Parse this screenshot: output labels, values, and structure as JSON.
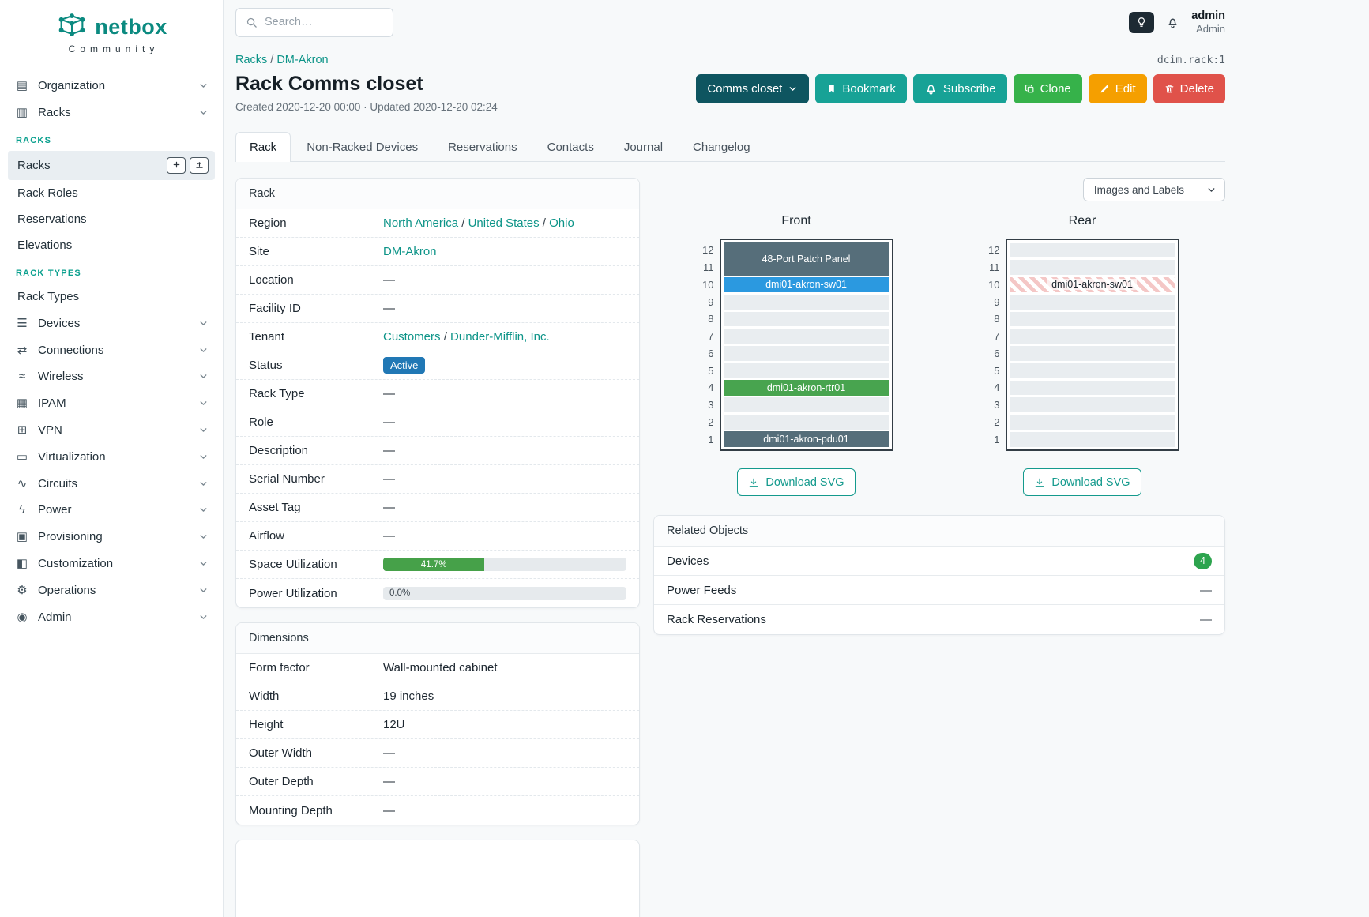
{
  "brand": {
    "name": "netbox",
    "community": "Community"
  },
  "topbar": {
    "search_placeholder": "Search…",
    "user_name": "admin",
    "user_role": "Admin"
  },
  "sidebar": {
    "items": [
      {
        "type": "top",
        "label": "Organization",
        "icon": "building-icon"
      },
      {
        "type": "top",
        "label": "Racks",
        "icon": "rack-icon",
        "expanded": true
      },
      {
        "type": "section",
        "label": "RACKS"
      },
      {
        "type": "sub",
        "label": "Racks",
        "active": true,
        "actions": [
          "add",
          "import"
        ]
      },
      {
        "type": "sub",
        "label": "Rack Roles"
      },
      {
        "type": "sub",
        "label": "Reservations"
      },
      {
        "type": "sub",
        "label": "Elevations"
      },
      {
        "type": "section",
        "label": "RACK TYPES"
      },
      {
        "type": "sub",
        "label": "Rack Types"
      },
      {
        "type": "top",
        "label": "Devices",
        "icon": "devices-icon"
      },
      {
        "type": "top",
        "label": "Connections",
        "icon": "connections-icon"
      },
      {
        "type": "top",
        "label": "Wireless",
        "icon": "wifi-icon"
      },
      {
        "type": "top",
        "label": "IPAM",
        "icon": "ipam-icon"
      },
      {
        "type": "top",
        "label": "VPN",
        "icon": "vpn-icon"
      },
      {
        "type": "top",
        "label": "Virtualization",
        "icon": "monitor-icon"
      },
      {
        "type": "top",
        "label": "Circuits",
        "icon": "circuits-icon"
      },
      {
        "type": "top",
        "label": "Power",
        "icon": "bolt-icon"
      },
      {
        "type": "top",
        "label": "Provisioning",
        "icon": "clipboard-icon"
      },
      {
        "type": "top",
        "label": "Customization",
        "icon": "package-icon"
      },
      {
        "type": "top",
        "label": "Operations",
        "icon": "gears-icon"
      },
      {
        "type": "top",
        "label": "Admin",
        "icon": "users-icon"
      }
    ]
  },
  "header": {
    "breadcrumb": [
      {
        "label": "Racks"
      },
      {
        "label": "DM-Akron"
      }
    ],
    "object_id": "dcim.rack:1",
    "title": "Rack Comms closet",
    "meta": "Created 2020-12-20 00:00 · Updated 2020-12-20 02:24",
    "actions": [
      {
        "label": "Comms closet",
        "style": "dark-teal",
        "chevron": true
      },
      {
        "label": "Bookmark",
        "style": "teal",
        "icon": "bookmark-icon"
      },
      {
        "label": "Subscribe",
        "style": "teal",
        "icon": "bell-icon"
      },
      {
        "label": "Clone",
        "style": "green",
        "icon": "copy-icon"
      },
      {
        "label": "Edit",
        "style": "orange",
        "icon": "pencil-icon"
      },
      {
        "label": "Delete",
        "style": "red",
        "icon": "trash-icon"
      }
    ]
  },
  "tabs": [
    {
      "label": "Rack",
      "active": true
    },
    {
      "label": "Non-Racked Devices"
    },
    {
      "label": "Reservations"
    },
    {
      "label": "Contacts"
    },
    {
      "label": "Journal"
    },
    {
      "label": "Changelog"
    }
  ],
  "rack_panel": {
    "title": "Rack",
    "rows": [
      {
        "label": "Region",
        "type": "links",
        "links": [
          "North America",
          "United States",
          "Ohio"
        ]
      },
      {
        "label": "Site",
        "type": "links",
        "links": [
          "DM-Akron"
        ]
      },
      {
        "label": "Location",
        "type": "text",
        "value": "—"
      },
      {
        "label": "Facility ID",
        "type": "text",
        "value": "—"
      },
      {
        "label": "Tenant",
        "type": "links",
        "links": [
          "Customers",
          "Dunder-Mifflin, Inc."
        ]
      },
      {
        "label": "Status",
        "type": "badge",
        "value": "Active"
      },
      {
        "label": "Rack Type",
        "type": "text",
        "value": "—"
      },
      {
        "label": "Role",
        "type": "text",
        "value": "—"
      },
      {
        "label": "Description",
        "type": "text",
        "value": "—"
      },
      {
        "label": "Serial Number",
        "type": "text",
        "value": "—"
      },
      {
        "label": "Asset Tag",
        "type": "text",
        "value": "—"
      },
      {
        "label": "Airflow",
        "type": "text",
        "value": "—"
      },
      {
        "label": "Space Utilization",
        "type": "progress",
        "value": 41.7,
        "display": "41.7%"
      },
      {
        "label": "Power Utilization",
        "type": "progress",
        "value": 0.0,
        "display": "0.0%"
      }
    ]
  },
  "dimensions_panel": {
    "title": "Dimensions",
    "rows": [
      {
        "label": "Form factor",
        "type": "text",
        "value": "Wall-mounted cabinet"
      },
      {
        "label": "Width",
        "type": "text",
        "value": "19 inches"
      },
      {
        "label": "Height",
        "type": "text",
        "value": "12U"
      },
      {
        "label": "Outer Width",
        "type": "text",
        "value": "—"
      },
      {
        "label": "Outer Depth",
        "type": "text",
        "value": "—"
      },
      {
        "label": "Mounting Depth",
        "type": "text",
        "value": "—"
      }
    ]
  },
  "elevations": {
    "view_select": "Images and Labels",
    "download_label": "Download SVG",
    "units": [
      12,
      11,
      10,
      9,
      8,
      7,
      6,
      5,
      4,
      3,
      2,
      1
    ],
    "front": {
      "title": "Front",
      "devices": [
        {
          "top_unit": 12,
          "span": 2,
          "label": "48-Port Patch Panel",
          "color": "#566e7a"
        },
        {
          "top_unit": 10,
          "span": 1,
          "label": "dmi01-akron-sw01",
          "color": "#2b99e0"
        },
        {
          "top_unit": 4,
          "span": 1,
          "label": "dmi01-akron-rtr01",
          "color": "#48a44f"
        },
        {
          "top_unit": 1,
          "span": 1,
          "label": "dmi01-akron-pdu01",
          "color": "#566e7a"
        }
      ]
    },
    "rear": {
      "title": "Rear",
      "devices": [
        {
          "top_unit": 10,
          "span": 1,
          "label": "dmi01-akron-sw01",
          "hatched": true
        }
      ]
    }
  },
  "related_objects": {
    "title": "Related Objects",
    "rows": [
      {
        "label": "Devices",
        "badge": "4"
      },
      {
        "label": "Power Feeds",
        "value": "—"
      },
      {
        "label": "Rack Reservations",
        "value": "—"
      }
    ]
  },
  "colors": {
    "brand_teal": "#0b8a80",
    "link_teal": "#0d9488",
    "status_active_blue": "#2178b5",
    "progress_green": "#46a149",
    "badge_green": "#2da44e",
    "button_dark_teal": "#0e5560",
    "button_teal": "#17a296",
    "button_green": "#36b24a",
    "button_orange": "#f59f00",
    "button_red": "#e0524a",
    "hatch_pink": "#f4c7c6"
  }
}
